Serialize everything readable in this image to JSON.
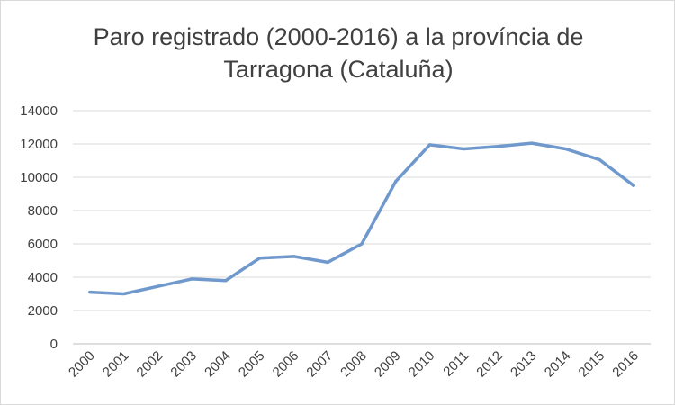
{
  "chart_data": {
    "type": "line",
    "title_lines": [
      "Paro registrado (2000-2016) a la província de",
      "Tarragona (Cataluña)"
    ],
    "xlabel": "",
    "ylabel": "",
    "categories": [
      "2000",
      "2001",
      "2002",
      "2003",
      "2004",
      "2005",
      "2006",
      "2007",
      "2008",
      "2009",
      "2010",
      "2011",
      "2012",
      "2013",
      "2014",
      "2015",
      "2016"
    ],
    "series": [
      {
        "values": [
          3100,
          3000,
          3450,
          3900,
          3800,
          5150,
          5250,
          4900,
          6000,
          9750,
          11950,
          11700,
          11850,
          12050,
          11700,
          11050,
          9500
        ],
        "color": "#6f98cc"
      }
    ],
    "ylim": [
      0,
      14000
    ],
    "yticks": [
      "0",
      "2000",
      "4000",
      "6000",
      "8000",
      "10000",
      "12000",
      "14000"
    ],
    "grid": true,
    "legend": "none"
  }
}
